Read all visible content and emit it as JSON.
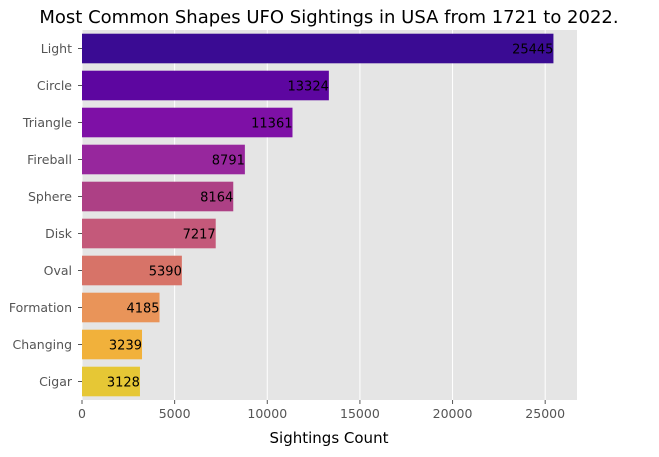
{
  "chart_data": {
    "type": "bar",
    "orientation": "horizontal",
    "title": "Most Common Shapes UFO Sightings in USA from 1721 to 2022.",
    "xlabel": "Sightings Count",
    "ylabel": "",
    "categories": [
      "Light",
      "Circle",
      "Triangle",
      "Fireball",
      "Sphere",
      "Disk",
      "Oval",
      "Formation",
      "Changing",
      "Cigar"
    ],
    "values": [
      25445,
      13324,
      11361,
      8791,
      8164,
      7217,
      5390,
      4185,
      3239,
      3128
    ],
    "data_labels": [
      "25445",
      "13324",
      "11361",
      "8791",
      "8164",
      "7217",
      "5390",
      "4185",
      "3239",
      "3128"
    ],
    "xlim": [
      0,
      26717
    ],
    "xticks": [
      0,
      5000,
      10000,
      15000,
      20000,
      25000
    ],
    "xtick_labels": [
      "0",
      "5000",
      "10000",
      "15000",
      "20000",
      "25000"
    ],
    "grid": true,
    "background_color": "#e5e5e5",
    "grid_color": "#ffffff",
    "colors": [
      "#3a0b93",
      "#5d06a0",
      "#7e10a6",
      "#97279d",
      "#ad4085",
      "#c4597a",
      "#d77368",
      "#e99459",
      "#f1b13b",
      "#e6c735"
    ]
  }
}
